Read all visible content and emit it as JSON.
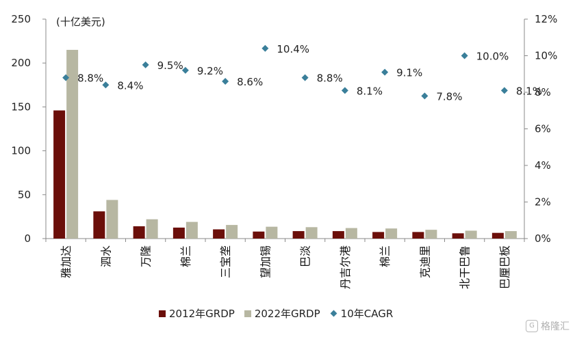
{
  "chart_data": {
    "type": "bar",
    "unit_label": "(十亿美元)",
    "categories": [
      "雅加达",
      "泗水",
      "万隆",
      "棉兰",
      "三宝垄",
      "望加锡",
      "巴淡",
      "丹吉尔港",
      "棉兰",
      "克迪里",
      "北干巴鲁",
      "巴厘巴板"
    ],
    "series": [
      {
        "name": "2012年GRDP",
        "type": "bar",
        "axis": "left",
        "color": "#6b0f0a",
        "values": [
          146,
          31,
          14,
          12.5,
          10.5,
          8,
          8.5,
          8.5,
          7.5,
          7.5,
          6,
          6.5
        ]
      },
      {
        "name": "2022年GRDP",
        "type": "bar",
        "axis": "left",
        "color": "#b7b7a2",
        "values": [
          215,
          44,
          22,
          19,
          15.5,
          13.5,
          13,
          12,
          11.5,
          10,
          9,
          8.5
        ]
      },
      {
        "name": "10年CAGR",
        "type": "scatter",
        "axis": "right",
        "color": "#3a7f9a",
        "values": [
          8.8,
          8.4,
          9.5,
          9.2,
          8.6,
          10.4,
          8.8,
          8.1,
          9.1,
          7.8,
          10.0,
          8.1
        ],
        "labels": [
          "8.8%",
          "8.4%",
          "9.5%",
          "9.2%",
          "8.6%",
          "10.4%",
          "8.8%",
          "8.1%",
          "9.1%",
          "7.8%",
          "10.0%",
          "8.1%"
        ]
      }
    ],
    "y_left": {
      "min": 0,
      "max": 250,
      "ticks": [
        0,
        50,
        100,
        150,
        200,
        250
      ]
    },
    "y_right": {
      "min": 0,
      "max": 12,
      "ticks": [
        0,
        2,
        4,
        6,
        8,
        10,
        12
      ],
      "tick_labels": [
        "0%",
        "2%",
        "4%",
        "6%",
        "8%",
        "10%",
        "12%"
      ]
    },
    "grid": false,
    "legend_position": "bottom"
  },
  "legend": [
    {
      "label": "2012年GRDP",
      "color": "#6b0f0a",
      "shape": "square"
    },
    {
      "label": "2022年GRDP",
      "color": "#b7b7a2",
      "shape": "square"
    },
    {
      "label": "10年CAGR",
      "color": "#3a7f9a",
      "shape": "diamond"
    }
  ],
  "watermark": {
    "text": "格隆汇",
    "icon": "gelonghui-logo-icon"
  }
}
